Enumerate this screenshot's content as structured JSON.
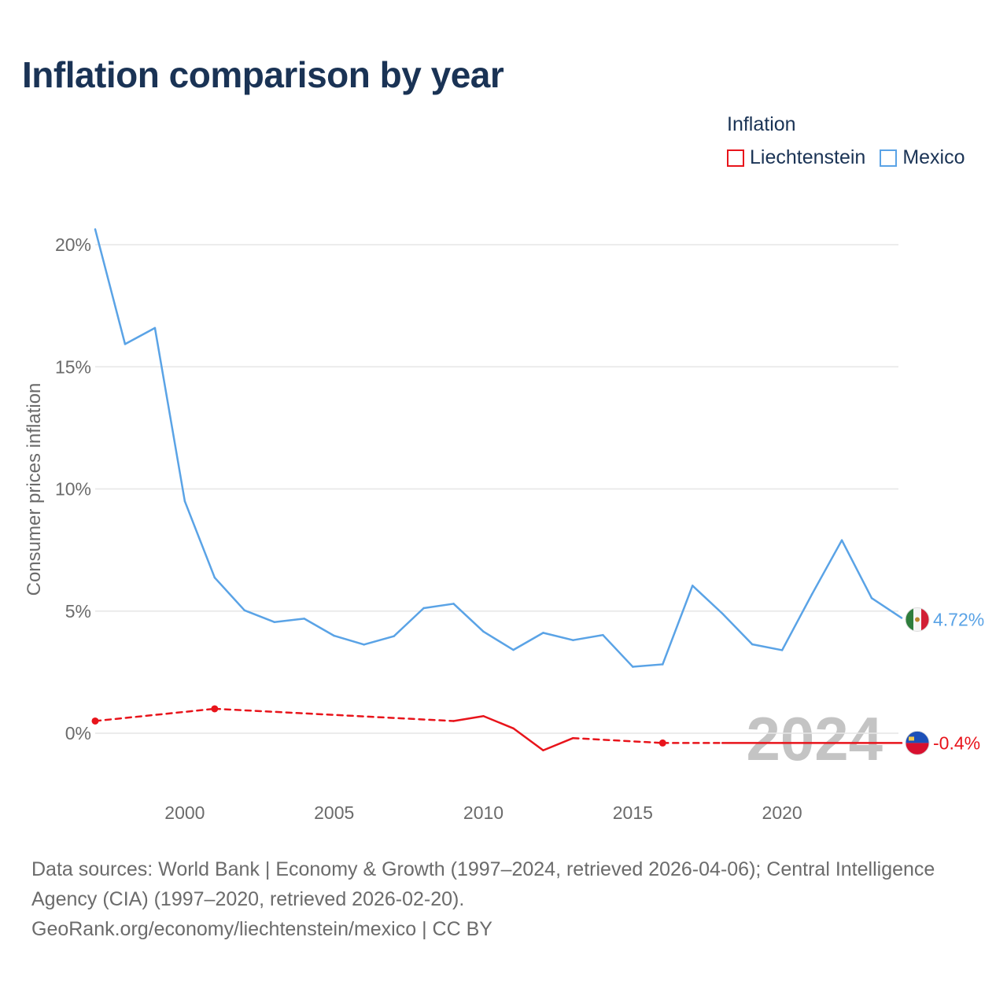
{
  "title": "Inflation comparison by year",
  "legend": {
    "title": "Inflation",
    "items": [
      {
        "name": "Liechtenstein",
        "color": "#e8141b"
      },
      {
        "name": "Mexico",
        "color": "#5aa3e6"
      }
    ]
  },
  "chart_data": {
    "type": "line",
    "ylabel": "Consumer prices inflation",
    "xlabel": "",
    "xlim": [
      1997,
      2024
    ],
    "ylim": [
      -2.5,
      21
    ],
    "x_ticks": [
      2000,
      2005,
      2010,
      2015,
      2020
    ],
    "x_tick_labels": [
      "2000",
      "2005",
      "2010",
      "2015",
      "2020"
    ],
    "y_ticks": [
      0,
      5,
      10,
      15,
      20
    ],
    "y_tick_labels": [
      "0%",
      "5%",
      "10%",
      "15%",
      "20%"
    ],
    "watermark_year": "2024",
    "series": [
      {
        "name": "Mexico",
        "color": "#5aa3e6",
        "flag": "mexico-flag",
        "end_label": "4.72%",
        "x": [
          1997,
          1998,
          1999,
          2000,
          2001,
          2002,
          2003,
          2004,
          2005,
          2006,
          2007,
          2008,
          2009,
          2010,
          2011,
          2012,
          2013,
          2014,
          2015,
          2016,
          2017,
          2018,
          2019,
          2020,
          2021,
          2022,
          2023,
          2024
        ],
        "values": [
          20.63,
          15.93,
          16.59,
          9.5,
          6.37,
          5.03,
          4.55,
          4.69,
          3.99,
          3.63,
          3.97,
          5.12,
          5.3,
          4.16,
          3.41,
          4.11,
          3.81,
          4.02,
          2.72,
          2.82,
          6.04,
          4.9,
          3.64,
          3.4,
          5.69,
          7.9,
          5.53,
          4.72
        ]
      },
      {
        "name": "Liechtenstein",
        "color": "#e8141b",
        "flag": "liechtenstein-flag",
        "end_label": "-0.4%",
        "x": [
          1997,
          2001,
          2009,
          2010,
          2011,
          2012,
          2013,
          2016,
          2018,
          2020,
          2024
        ],
        "values": [
          0.5,
          1.0,
          0.5,
          0.7,
          0.2,
          -0.7,
          -0.2,
          -0.4,
          -0.4,
          -0.4,
          -0.4
        ],
        "dashed_segments": [
          [
            1997,
            2001
          ],
          [
            2001,
            2009
          ],
          [
            2013,
            2016
          ],
          [
            2016,
            2018
          ]
        ],
        "markers": [
          1997,
          2001,
          2016
        ]
      }
    ]
  },
  "footer": {
    "sources": "Data sources: World Bank | Economy & Growth (1997–2024, retrieved 2026-04-06); Central Intelligence Agency (CIA) (1997–2020, retrieved 2026-02-20).",
    "credit": "GeoRank.org/economy/liechtenstein/mexico | CC BY"
  }
}
